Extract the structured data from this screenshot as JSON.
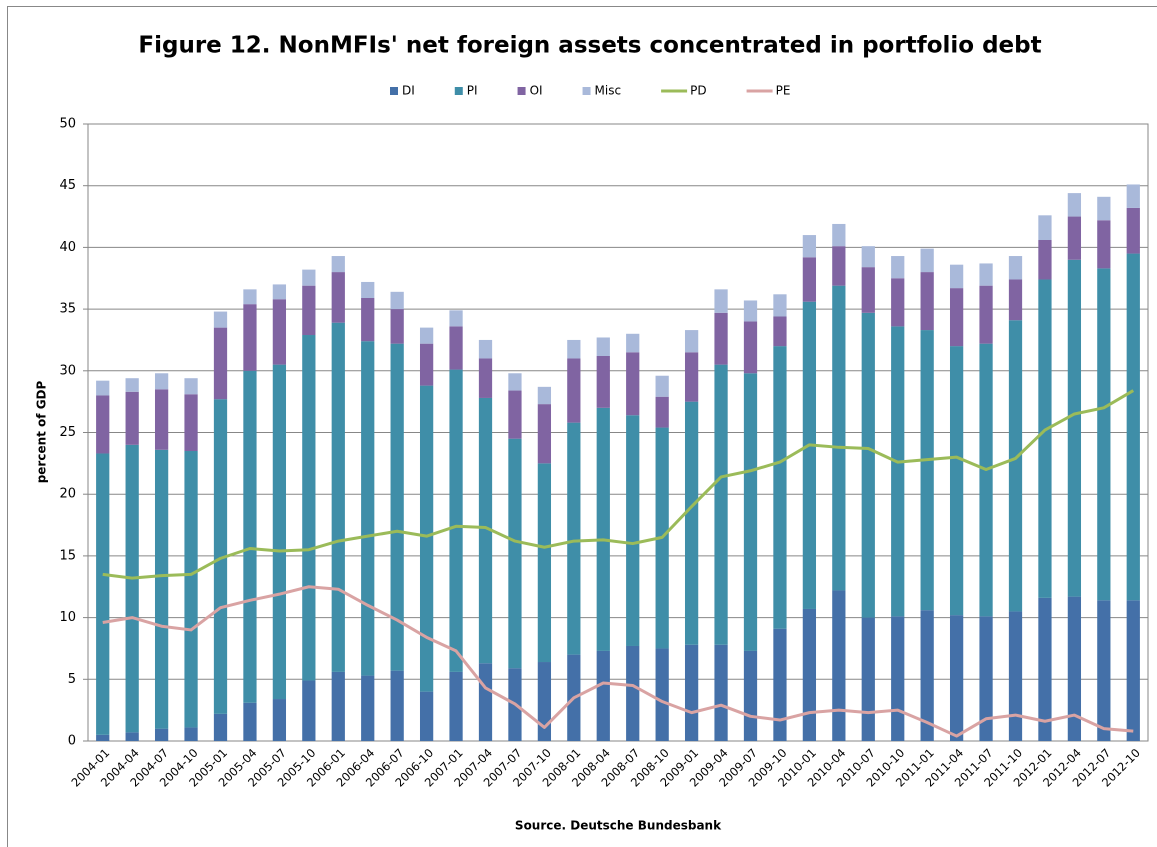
{
  "chart_data": {
    "type": "bar",
    "stacked": true,
    "title": "Figure 12. NonMFIs' net foreign assets concentrated in portfolio debt",
    "y_label": "percent of GDP",
    "x_label": "Source. Deutsche Bundesbank",
    "categories": [
      "2004-01",
      "2004-04",
      "2004-07",
      "2004-10",
      "2005-01",
      "2005-04",
      "2005-07",
      "2005-10",
      "2006-01",
      "2006-04",
      "2006-07",
      "2006-10",
      "2007-01",
      "2007-04",
      "2007-07",
      "2007-10",
      "2008-01",
      "2008-04",
      "2008-07",
      "2008-10",
      "2009-01",
      "2009-04",
      "2009-07",
      "2009-10",
      "2010-01",
      "2010-04",
      "2010-07",
      "2010-10",
      "2011-01",
      "2011-04",
      "2011-07",
      "2011-10",
      "2012-01",
      "2012-04",
      "2012-07",
      "2012-10"
    ],
    "series": [
      {
        "name": "DI",
        "type": "bar",
        "color": "#4470a8",
        "values": [
          0.5,
          0.7,
          1.0,
          1.1,
          2.2,
          3.1,
          3.4,
          4.9,
          5.6,
          5.3,
          5.7,
          4.0,
          5.6,
          6.3,
          5.9,
          6.4,
          7.0,
          7.3,
          7.7,
          7.5,
          7.8,
          7.8,
          7.3,
          9.1,
          10.7,
          12.2,
          10.0,
          10.1,
          10.6,
          10.2,
          10.1,
          10.5,
          11.6,
          11.7,
          11.4,
          11.4
        ]
      },
      {
        "name": "PI",
        "type": "bar",
        "color": "#3f8ea8",
        "values": [
          22.8,
          23.3,
          22.6,
          22.4,
          25.5,
          26.9,
          27.1,
          28.0,
          28.3,
          27.1,
          26.5,
          24.8,
          24.5,
          21.5,
          18.6,
          16.1,
          18.8,
          19.7,
          18.7,
          17.9,
          19.7,
          22.7,
          22.5,
          22.9,
          24.9,
          24.7,
          24.7,
          23.5,
          22.7,
          21.8,
          22.1,
          23.6,
          25.8,
          27.3,
          26.9,
          28.1
        ]
      },
      {
        "name": "OI",
        "type": "bar",
        "color": "#8064a2",
        "values": [
          4.7,
          4.3,
          4.9,
          4.6,
          5.8,
          5.4,
          5.3,
          4.0,
          4.1,
          3.5,
          2.8,
          3.4,
          3.5,
          3.2,
          3.9,
          4.8,
          5.2,
          4.2,
          5.1,
          2.5,
          4.0,
          4.2,
          4.2,
          2.4,
          3.6,
          3.2,
          3.7,
          3.9,
          4.7,
          4.7,
          4.7,
          3.3,
          3.2,
          3.5,
          3.9,
          3.7
        ]
      },
      {
        "name": "Misc",
        "type": "bar",
        "color": "#a9b9da",
        "values": [
          1.2,
          1.1,
          1.3,
          1.3,
          1.3,
          1.2,
          1.2,
          1.3,
          1.3,
          1.3,
          1.4,
          1.3,
          1.3,
          1.5,
          1.4,
          1.4,
          1.5,
          1.5,
          1.5,
          1.7,
          1.8,
          1.9,
          1.7,
          1.8,
          1.8,
          1.8,
          1.7,
          1.8,
          1.9,
          1.9,
          1.8,
          1.9,
          2.0,
          1.9,
          1.9,
          1.9
        ]
      },
      {
        "name": "PD",
        "type": "line",
        "color": "#9bbb59",
        "values": [
          13.5,
          13.2,
          13.4,
          13.5,
          14.8,
          15.6,
          15.4,
          15.5,
          16.2,
          16.6,
          17.0,
          16.6,
          17.4,
          17.3,
          16.2,
          15.7,
          16.2,
          16.3,
          16.0,
          16.5,
          19.0,
          21.4,
          21.9,
          22.6,
          24.0,
          23.8,
          23.7,
          22.6,
          22.8,
          23.0,
          22.0,
          22.9,
          25.2,
          26.5,
          27.0,
          28.4
        ]
      },
      {
        "name": "PE",
        "type": "line",
        "color": "#d9a3a3",
        "values": [
          9.6,
          10.0,
          9.3,
          9.0,
          10.8,
          11.4,
          11.9,
          12.5,
          12.3,
          11.0,
          9.8,
          8.4,
          7.3,
          4.3,
          3.0,
          1.1,
          3.5,
          4.7,
          4.5,
          3.2,
          2.3,
          2.9,
          2.0,
          1.7,
          2.3,
          2.5,
          2.3,
          2.5,
          1.5,
          0.4,
          1.8,
          2.1,
          1.6,
          2.1,
          1.0,
          0.8
        ]
      }
    ],
    "ylim": [
      0,
      50
    ],
    "yticks": [
      0,
      5,
      10,
      15,
      20,
      25,
      30,
      35,
      40,
      45,
      50
    ],
    "grid": true,
    "legend": "top"
  }
}
